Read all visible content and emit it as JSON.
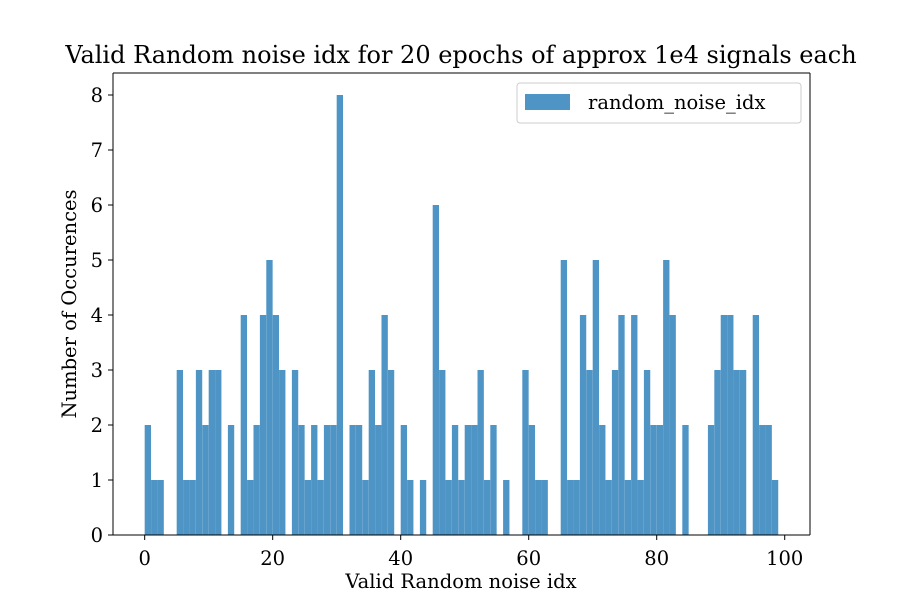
{
  "chart_data": {
    "type": "bar",
    "title": "Valid Random noise idx for 20 epochs of approx 1e4 signals each",
    "xlabel": "Valid Random noise idx",
    "ylabel": "Number of Occurences",
    "legend": {
      "entries": [
        "random_noise_idx"
      ],
      "placement": "top-right"
    },
    "grid": false,
    "bar_color": "#4e94c5",
    "bin_width": 0.99,
    "xlim": [
      -4.95,
      103.95
    ],
    "ylim": [
      0,
      8.4
    ],
    "xticks": [
      0,
      20,
      40,
      60,
      80,
      100
    ],
    "yticks": [
      0,
      1,
      2,
      3,
      4,
      5,
      6,
      7,
      8
    ],
    "series": [
      {
        "name": "random_noise_idx",
        "x": [
          0,
          1,
          2,
          3,
          4,
          5,
          6,
          7,
          8,
          9,
          10,
          11,
          12,
          13,
          14,
          15,
          16,
          17,
          18,
          19,
          20,
          21,
          22,
          23,
          24,
          25,
          26,
          27,
          28,
          29,
          30,
          31,
          32,
          33,
          34,
          35,
          36,
          37,
          38,
          39,
          40,
          41,
          42,
          43,
          44,
          45,
          46,
          47,
          48,
          49,
          50,
          51,
          52,
          53,
          54,
          55,
          56,
          57,
          58,
          59,
          60,
          61,
          62,
          63,
          64,
          65,
          66,
          67,
          68,
          69,
          70,
          71,
          72,
          73,
          74,
          75,
          76,
          77,
          78,
          79,
          80,
          81,
          82,
          83,
          84,
          85,
          86,
          87,
          88,
          89,
          90,
          91,
          92,
          93,
          94,
          95,
          96,
          97,
          98,
          99
        ],
        "values": [
          2,
          1,
          1,
          0,
          0,
          3,
          1,
          1,
          3,
          2,
          3,
          3,
          0,
          2,
          0,
          4,
          1,
          2,
          4,
          5,
          4,
          3,
          0,
          3,
          2,
          1,
          2,
          1,
          2,
          2,
          8,
          0,
          2,
          2,
          1,
          3,
          2,
          4,
          3,
          0,
          2,
          1,
          0,
          1,
          0,
          6,
          3,
          1,
          2,
          1,
          2,
          2,
          3,
          1,
          2,
          0,
          1,
          0,
          0,
          3,
          2,
          1,
          1,
          0,
          0,
          5,
          1,
          1,
          4,
          3,
          5,
          2,
          1,
          3,
          4,
          1,
          4,
          1,
          3,
          2,
          2,
          5,
          4,
          0,
          2,
          0,
          0,
          0,
          2,
          3,
          4,
          4,
          3,
          3,
          0,
          4,
          2,
          2,
          1,
          0
        ]
      }
    ]
  }
}
